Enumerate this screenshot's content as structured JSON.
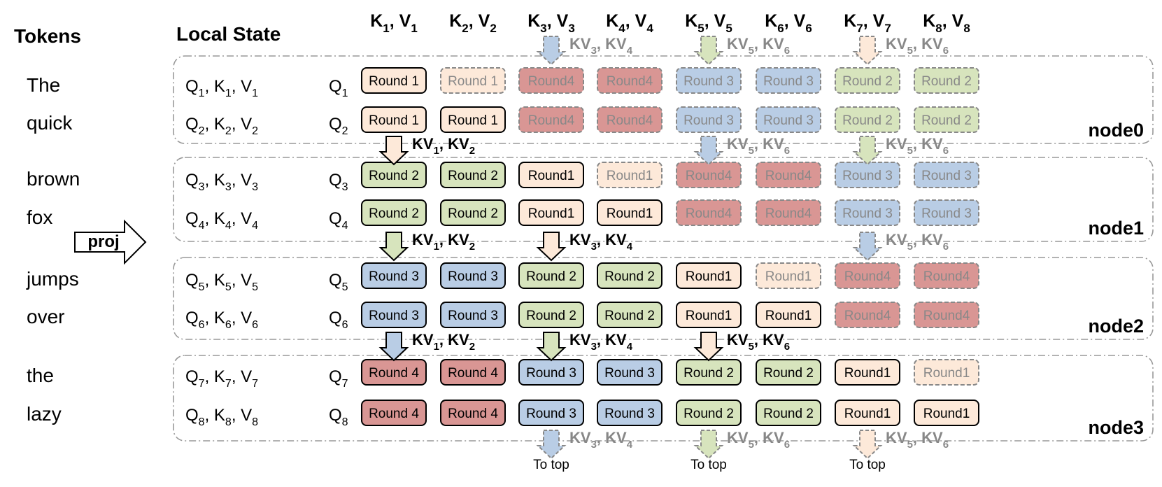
{
  "headers": {
    "tokens": "Tokens",
    "local_state": "Local State",
    "kv_columns": [
      [
        "K",
        "1",
        "V",
        "1"
      ],
      [
        "K",
        "2",
        "V",
        "2"
      ],
      [
        "K",
        "3",
        "V",
        "3"
      ],
      [
        "K",
        "4",
        "V",
        "4"
      ],
      [
        "K",
        "5",
        "V",
        "5"
      ],
      [
        "K",
        "6",
        "V",
        "6"
      ],
      [
        "K",
        "7",
        "V",
        "7"
      ],
      [
        "K",
        "8",
        "V",
        "8"
      ]
    ]
  },
  "tokens": [
    "The",
    "quick",
    "brown",
    "fox",
    "jumps",
    "over",
    "the",
    "lazy"
  ],
  "proj_label": "proj",
  "nodes": [
    "node0",
    "node1",
    "node2",
    "node3"
  ],
  "rows": [
    {
      "qkv": [
        "Q",
        "1",
        "K",
        "1",
        "V",
        "1"
      ],
      "q": [
        "Q",
        "1"
      ],
      "cells": [
        [
          "Round 1",
          "c",
          "solid"
        ],
        [
          "Round 1",
          "c",
          "dash"
        ],
        [
          "Round4",
          "r",
          "dash"
        ],
        [
          "Round4",
          "r",
          "dash"
        ],
        [
          "Round 3",
          "b",
          "dash"
        ],
        [
          "Round 3",
          "b",
          "dash"
        ],
        [
          "Round 2",
          "g",
          "dash"
        ],
        [
          "Round 2",
          "g",
          "dash"
        ]
      ]
    },
    {
      "qkv": [
        "Q",
        "2",
        "K",
        "2",
        "V",
        "2"
      ],
      "q": [
        "Q",
        "2"
      ],
      "cells": [
        [
          "Round 1",
          "c",
          "solid"
        ],
        [
          "Round 1",
          "c",
          "solid"
        ],
        [
          "Round4",
          "r",
          "dash"
        ],
        [
          "Round4",
          "r",
          "dash"
        ],
        [
          "Round 3",
          "b",
          "dash"
        ],
        [
          "Round 3",
          "b",
          "dash"
        ],
        [
          "Round 2",
          "g",
          "dash"
        ],
        [
          "Round 2",
          "g",
          "dash"
        ]
      ]
    },
    {
      "qkv": [
        "Q",
        "3",
        "K",
        "3",
        "V",
        "3"
      ],
      "q": [
        "Q",
        "3"
      ],
      "cells": [
        [
          "Round 2",
          "g",
          "solid"
        ],
        [
          "Round 2",
          "g",
          "solid"
        ],
        [
          "Round1",
          "c",
          "solid"
        ],
        [
          "Round1",
          "c",
          "dash"
        ],
        [
          "Round4",
          "r",
          "dash"
        ],
        [
          "Round4",
          "r",
          "dash"
        ],
        [
          "Round 3",
          "b",
          "dash"
        ],
        [
          "Round 3",
          "b",
          "dash"
        ]
      ]
    },
    {
      "qkv": [
        "Q",
        "4",
        "K",
        "4",
        "V",
        "4"
      ],
      "q": [
        "Q",
        "4"
      ],
      "cells": [
        [
          "Round 2",
          "g",
          "solid"
        ],
        [
          "Round 2",
          "g",
          "solid"
        ],
        [
          "Round1",
          "c",
          "solid"
        ],
        [
          "Round1",
          "c",
          "solid"
        ],
        [
          "Round4",
          "r",
          "dash"
        ],
        [
          "Round4",
          "r",
          "dash"
        ],
        [
          "Round 3",
          "b",
          "dash"
        ],
        [
          "Round 3",
          "b",
          "dash"
        ]
      ]
    },
    {
      "qkv": [
        "Q",
        "5",
        "K",
        "5",
        "V",
        "5"
      ],
      "q": [
        "Q",
        "5"
      ],
      "cells": [
        [
          "Round 3",
          "b",
          "solid"
        ],
        [
          "Round 3",
          "b",
          "solid"
        ],
        [
          "Round 2",
          "g",
          "solid"
        ],
        [
          "Round 2",
          "g",
          "solid"
        ],
        [
          "Round1",
          "c",
          "solid"
        ],
        [
          "Round1",
          "c",
          "dash"
        ],
        [
          "Round4",
          "r",
          "dash"
        ],
        [
          "Round4",
          "r",
          "dash"
        ]
      ]
    },
    {
      "qkv": [
        "Q",
        "6",
        "K",
        "6",
        "V",
        "6"
      ],
      "q": [
        "Q",
        "6"
      ],
      "cells": [
        [
          "Round 3",
          "b",
          "solid"
        ],
        [
          "Round 3",
          "b",
          "solid"
        ],
        [
          "Round 2",
          "g",
          "solid"
        ],
        [
          "Round 2",
          "g",
          "solid"
        ],
        [
          "Round1",
          "c",
          "solid"
        ],
        [
          "Round1",
          "c",
          "solid"
        ],
        [
          "Round4",
          "r",
          "dash"
        ],
        [
          "Round4",
          "r",
          "dash"
        ]
      ]
    },
    {
      "qkv": [
        "Q",
        "7",
        "K",
        "7",
        "V",
        "7"
      ],
      "q": [
        "Q",
        "7"
      ],
      "cells": [
        [
          "Round 4",
          "r",
          "solid"
        ],
        [
          "Round 4",
          "r",
          "solid"
        ],
        [
          "Round 3",
          "b",
          "solid"
        ],
        [
          "Round 3",
          "b",
          "solid"
        ],
        [
          "Round 2",
          "g",
          "solid"
        ],
        [
          "Round 2",
          "g",
          "solid"
        ],
        [
          "Round1",
          "c",
          "solid"
        ],
        [
          "Round1",
          "c",
          "dash"
        ]
      ]
    },
    {
      "qkv": [
        "Q",
        "8",
        "K",
        "8",
        "V",
        "8"
      ],
      "q": [
        "Q",
        "8"
      ],
      "cells": [
        [
          "Round 4",
          "r",
          "solid"
        ],
        [
          "Round 4",
          "r",
          "solid"
        ],
        [
          "Round 3",
          "b",
          "solid"
        ],
        [
          "Round 3",
          "b",
          "solid"
        ],
        [
          "Round 2",
          "g",
          "solid"
        ],
        [
          "Round 2",
          "g",
          "solid"
        ],
        [
          "Round1",
          "c",
          "solid"
        ],
        [
          "Round1",
          "c",
          "solid"
        ]
      ]
    }
  ],
  "transfer_arrows": [
    {
      "col": 2,
      "gap": 0,
      "color": "b",
      "ghost": true,
      "label": [
        "KV",
        "3",
        ", KV",
        "4"
      ]
    },
    {
      "col": 4,
      "gap": 0,
      "color": "g",
      "ghost": true,
      "label": [
        "KV",
        "5",
        ", KV",
        "6"
      ]
    },
    {
      "col": 6,
      "gap": 0,
      "color": "c",
      "ghost": true,
      "label": [
        "KV",
        "5",
        ", KV",
        "6"
      ]
    },
    {
      "col": 0,
      "gap": 1,
      "color": "c",
      "ghost": false,
      "label": [
        "KV",
        "1",
        ", KV",
        "2"
      ]
    },
    {
      "col": 4,
      "gap": 1,
      "color": "b",
      "ghost": true,
      "label": [
        "KV",
        "5",
        ", KV",
        "6"
      ]
    },
    {
      "col": 6,
      "gap": 1,
      "color": "g",
      "ghost": true,
      "label": [
        "KV",
        "5",
        ", KV",
        "6"
      ]
    },
    {
      "col": 0,
      "gap": 2,
      "color": "g",
      "ghost": false,
      "label": [
        "KV",
        "1",
        ", KV",
        "2"
      ]
    },
    {
      "col": 2,
      "gap": 2,
      "color": "c",
      "ghost": false,
      "label": [
        "KV",
        "3",
        ", KV",
        "4"
      ]
    },
    {
      "col": 6,
      "gap": 2,
      "color": "b",
      "ghost": true,
      "label": [
        "KV",
        "5",
        ", KV",
        "6"
      ]
    },
    {
      "col": 0,
      "gap": 3,
      "color": "b",
      "ghost": false,
      "label": [
        "KV",
        "1",
        ", KV",
        "2"
      ]
    },
    {
      "col": 2,
      "gap": 3,
      "color": "g",
      "ghost": false,
      "label": [
        "KV",
        "3",
        ", KV",
        "4"
      ]
    },
    {
      "col": 4,
      "gap": 3,
      "color": "c",
      "ghost": false,
      "label": [
        "KV",
        "5",
        ", KV",
        "6"
      ]
    },
    {
      "col": 2,
      "gap": 4,
      "color": "b",
      "ghost": true,
      "label": [
        "KV",
        "3",
        ", KV",
        "4"
      ]
    },
    {
      "col": 4,
      "gap": 4,
      "color": "g",
      "ghost": true,
      "label": [
        "KV",
        "5",
        ", KV",
        "6"
      ]
    },
    {
      "col": 6,
      "gap": 4,
      "color": "c",
      "ghost": true,
      "label": [
        "KV",
        "5",
        ", KV",
        "6"
      ]
    }
  ],
  "to_top_label": "To top",
  "colors": {
    "c": {
      "fill": "#fde9d9",
      "stroke": "#000000"
    },
    "g": {
      "fill": "#d7e4bd",
      "stroke": "#000000"
    },
    "b": {
      "fill": "#b9cde5",
      "stroke": "#000000"
    },
    "r": {
      "fill": "#d99694",
      "stroke": "#000000"
    },
    "ghost_stroke": "#888888",
    "ghost_text": "#888888",
    "frame_stroke": "#999999"
  }
}
